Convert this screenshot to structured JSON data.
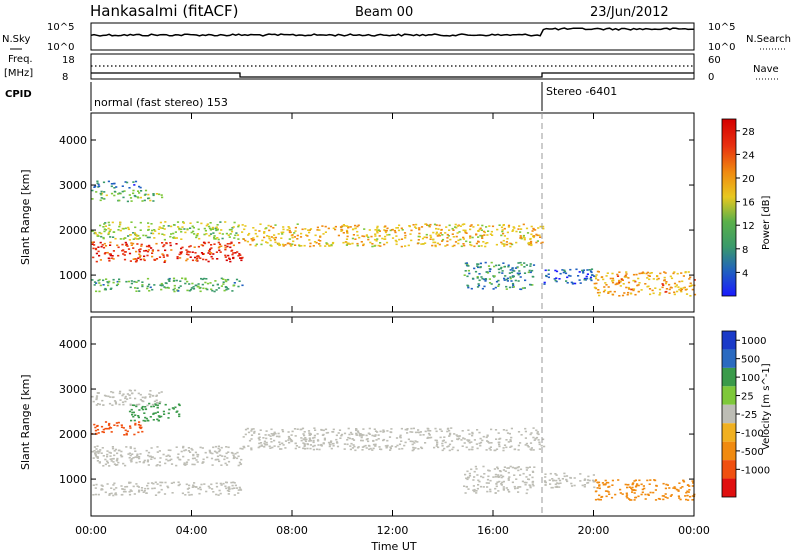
{
  "header": {
    "station": "Hankasalmi (fitACF)",
    "beam": "Beam 00",
    "date": "23/Jun/2012"
  },
  "noise_panel": {
    "left_label": "N.Sky",
    "right_label": "N.Search",
    "left_ticks": [
      "10^5",
      "10^0"
    ],
    "right_ticks": [
      "10^5",
      "10^0"
    ]
  },
  "freq_panel": {
    "left_label_line1": "Freq.",
    "left_label_line2": "[MHz]",
    "right_label": "Nave",
    "left_ticks": [
      "18",
      "8"
    ],
    "right_ticks": [
      "60",
      "0"
    ]
  },
  "cpid_panel": {
    "label": "CPID",
    "mode1": "normal (fast stereo) 153",
    "mode2": "Stereo -6401"
  },
  "colors": {
    "power_scale": [
      "#1a1aff",
      "#2060c0",
      "#3a9a6a",
      "#7ec83a",
      "#e8c820",
      "#f08a10",
      "#e83010",
      "#d40000"
    ],
    "velocity_scale": [
      "#1a3ac8",
      "#2a6ac0",
      "#3a9a4a",
      "#7ec83a",
      "#bdbdb5",
      "#f0b020",
      "#f08a10",
      "#f05010",
      "#e01010"
    ]
  },
  "chart_data": [
    {
      "type": "heatmap",
      "title": "Power",
      "ylabel": "Slant Range [km]",
      "xlabel": "Time UT",
      "x_ticks": [
        "00:00",
        "04:00",
        "08:00",
        "12:00",
        "16:00",
        "20:00",
        "00:00"
      ],
      "y_ticks": [
        "1000",
        "2000",
        "3000",
        "4000"
      ],
      "ylim": [
        180,
        4600
      ],
      "xlim_hours": [
        0,
        24
      ],
      "colorbar_label": "Power [dB]",
      "colorbar_ticks": [
        "4",
        "8",
        "12",
        "16",
        "20",
        "24",
        "28"
      ],
      "colorbar_range": [
        0,
        30
      ],
      "echo_regions": [
        {
          "t": [
            0.0,
            6.0
          ],
          "r": [
            1300,
            1750
          ],
          "value": 26
        },
        {
          "t": [
            0.0,
            6.0
          ],
          "r": [
            1800,
            2200
          ],
          "value": 14
        },
        {
          "t": [
            0.0,
            2.8
          ],
          "r": [
            2650,
            2900
          ],
          "value": 12
        },
        {
          "t": [
            0.0,
            2.0
          ],
          "r": [
            2950,
            3100
          ],
          "value": 6
        },
        {
          "t": [
            0.0,
            6.0
          ],
          "r": [
            650,
            950
          ],
          "value": 10
        },
        {
          "t": [
            6.0,
            18.0
          ],
          "r": [
            1650,
            2150
          ],
          "value": 18
        },
        {
          "t": [
            14.8,
            17.6
          ],
          "r": [
            700,
            1300
          ],
          "value": 8
        },
        {
          "t": [
            20.0,
            24.0
          ],
          "r": [
            550,
            1100
          ],
          "value": 20
        },
        {
          "t": [
            18.0,
            20.0
          ],
          "r": [
            800,
            1150
          ],
          "value": 4
        }
      ]
    },
    {
      "type": "heatmap",
      "title": "Velocity",
      "ylabel": "Slant Range [km]",
      "xlabel": "Time UT",
      "x_ticks": [
        "00:00",
        "04:00",
        "08:00",
        "12:00",
        "16:00",
        "20:00",
        "00:00"
      ],
      "y_ticks": [
        "1000",
        "2000",
        "3000",
        "4000"
      ],
      "ylim": [
        180,
        4600
      ],
      "xlim_hours": [
        0,
        24
      ],
      "colorbar_label": "Velocity [m s^-1]",
      "colorbar_ticks": [
        "1000",
        "500",
        "100",
        "25",
        "-25",
        "-100",
        "-500",
        "-1000"
      ],
      "echo_regions": [
        {
          "t": [
            0.0,
            6.0
          ],
          "r": [
            1300,
            1750
          ],
          "value": 0
        },
        {
          "t": [
            0.0,
            2.0
          ],
          "r": [
            2000,
            2300
          ],
          "value": -300
        },
        {
          "t": [
            1.5,
            3.5
          ],
          "r": [
            2300,
            2700
          ],
          "value": 200
        },
        {
          "t": [
            0.0,
            2.8
          ],
          "r": [
            2650,
            3000
          ],
          "value": 0
        },
        {
          "t": [
            0.0,
            6.0
          ],
          "r": [
            650,
            950
          ],
          "value": 0
        },
        {
          "t": [
            6.0,
            18.0
          ],
          "r": [
            1650,
            2150
          ],
          "value": 0
        },
        {
          "t": [
            14.8,
            17.6
          ],
          "r": [
            700,
            1300
          ],
          "value": 0
        },
        {
          "t": [
            20.0,
            24.0
          ],
          "r": [
            550,
            1000
          ],
          "value": -150
        },
        {
          "t": [
            18.0,
            20.0
          ],
          "r": [
            800,
            1150
          ],
          "value": 0
        }
      ]
    }
  ]
}
